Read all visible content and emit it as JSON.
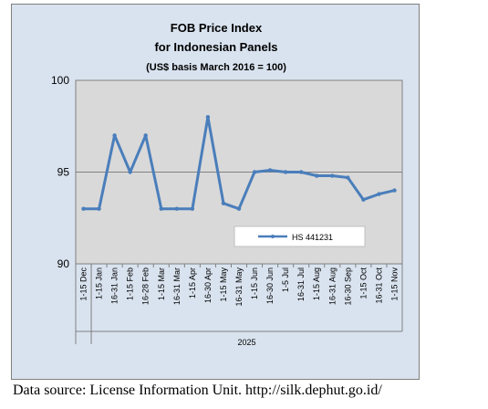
{
  "chart_data": {
    "type": "line",
    "title": [
      "FOB Price Index",
      "for Indonesian Panels",
      "(US$ basis March 2016 = 100)"
    ],
    "categories": [
      "1-15 Dec",
      "1-15 Jan",
      "16-31 Jan",
      "1-15 Feb",
      "16-28 Feb",
      "1-15 Mar",
      "16-31 Mar",
      "1-15 Apr",
      "16-30 Apr",
      "1-15 May",
      "16-31 May",
      "1-15 Jun",
      "16-30 Jun",
      "1-5 Jul",
      "16-31 Jul",
      "1-15 Aug",
      "16-31 Aug",
      "16-30 Sep",
      "1-15 Oct",
      "16-31 Oct",
      "1-15 Nov"
    ],
    "year_label": "2025",
    "series": [
      {
        "name": "HS 441231",
        "values": [
          93.0,
          93.0,
          97.0,
          95.0,
          97.0,
          93.0,
          93.0,
          93.0,
          98.0,
          93.3,
          93.0,
          95.0,
          95.1,
          95.0,
          95.0,
          94.8,
          94.8,
          94.7,
          93.5,
          93.8,
          94.0
        ],
        "color": "#4a7ebb"
      }
    ],
    "ylim": [
      90,
      100
    ],
    "yticks": [
      90,
      95,
      100
    ],
    "grid": true,
    "legend": "inside-lower-right",
    "plot_background": "#d9d9d9"
  },
  "source": "Data source: License Information Unit. http://silk.dephut.go.id/"
}
